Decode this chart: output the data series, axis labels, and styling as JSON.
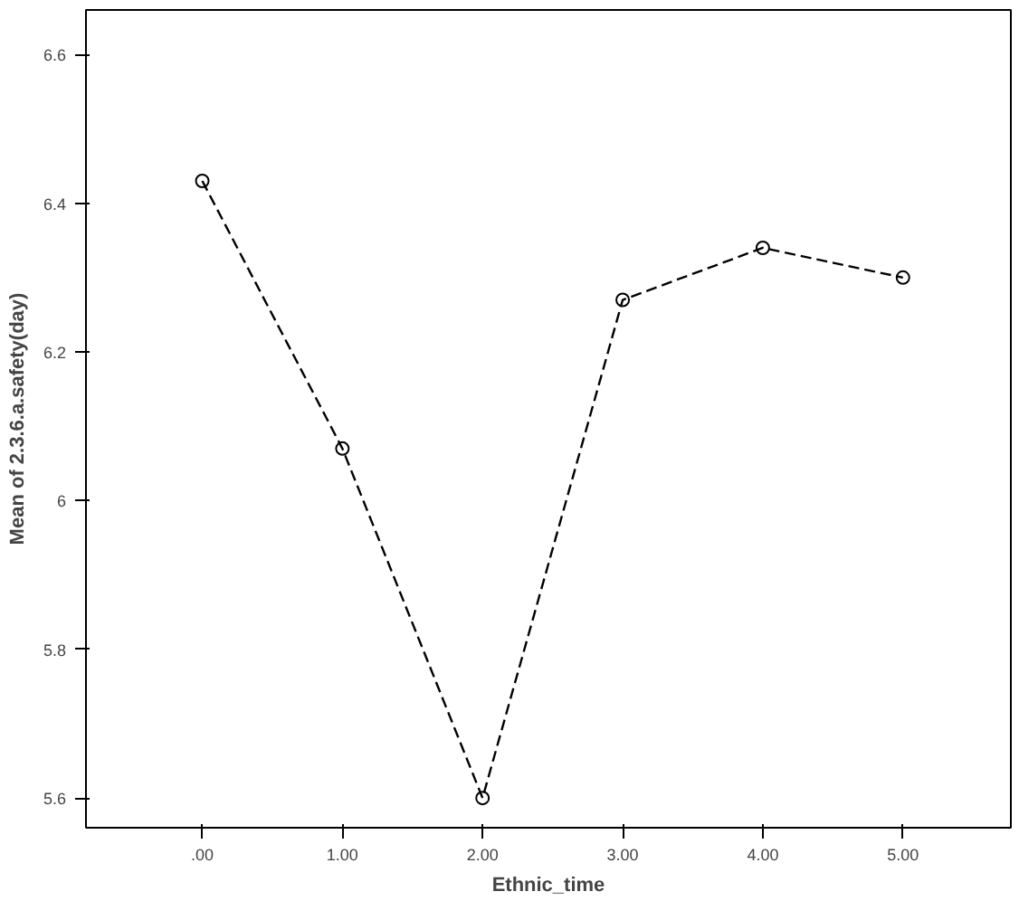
{
  "chart_data": {
    "type": "line",
    "xlabel": "Ethnic_time",
    "ylabel": "Mean of 2.3.6.a.safety(day)",
    "x": [
      0,
      1,
      2,
      3,
      4,
      5
    ],
    "series": [
      {
        "color": "#000000",
        "values": [
          6.43,
          6.07,
          5.6,
          6.27,
          6.34,
          6.3
        ]
      }
    ],
    "xlim": [
      -0.83,
      5.77
    ],
    "ylim": [
      5.56,
      6.66
    ],
    "xticks": [
      {
        "value": 0,
        "label": ".00"
      },
      {
        "value": 1,
        "label": "1.00"
      },
      {
        "value": 2,
        "label": "2.00"
      },
      {
        "value": 3,
        "label": "3.00"
      },
      {
        "value": 4,
        "label": "4.00"
      },
      {
        "value": 5,
        "label": "5.00"
      }
    ],
    "yticks": [
      5.6,
      5.8,
      6,
      6.2,
      6.4,
      6.6
    ],
    "marker": "circle",
    "line_style": "dashed"
  }
}
